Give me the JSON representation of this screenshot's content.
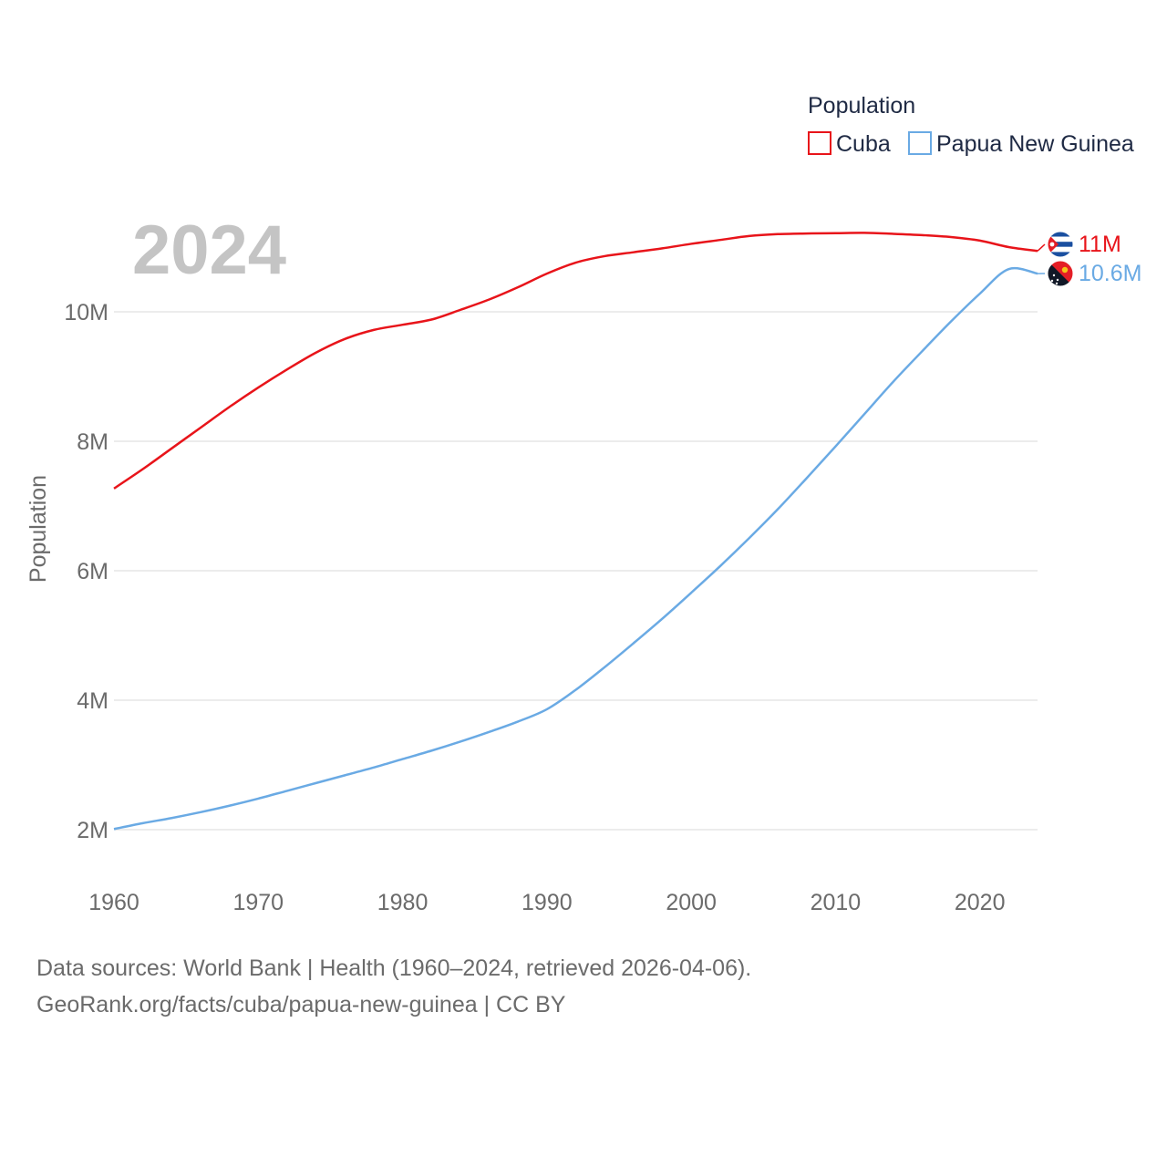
{
  "chart_data": {
    "type": "line",
    "year_label": "2024",
    "ylabel": "Population",
    "legend": {
      "title": "Population",
      "placement": "top-right"
    },
    "x_ticks": [
      1960,
      1970,
      1980,
      1990,
      2000,
      2010,
      2020
    ],
    "xlim": [
      1960,
      2024
    ],
    "y_ticks": [
      {
        "value": 2000000,
        "label": "2M"
      },
      {
        "value": 4000000,
        "label": "4M"
      },
      {
        "value": 6000000,
        "label": "6M"
      },
      {
        "value": 8000000,
        "label": "8M"
      },
      {
        "value": 10000000,
        "label": "10M"
      }
    ],
    "series": [
      {
        "name": "Cuba",
        "color": "#e8141a",
        "end_label": "11M",
        "flag": "cuba-flag-icon",
        "points": [
          [
            1960,
            7270000
          ],
          [
            1962,
            7570000
          ],
          [
            1964,
            7890000
          ],
          [
            1966,
            8210000
          ],
          [
            1968,
            8530000
          ],
          [
            1970,
            8830000
          ],
          [
            1972,
            9110000
          ],
          [
            1974,
            9370000
          ],
          [
            1976,
            9580000
          ],
          [
            1978,
            9720000
          ],
          [
            1980,
            9800000
          ],
          [
            1982,
            9880000
          ],
          [
            1984,
            10030000
          ],
          [
            1986,
            10190000
          ],
          [
            1988,
            10380000
          ],
          [
            1990,
            10590000
          ],
          [
            1992,
            10760000
          ],
          [
            1994,
            10860000
          ],
          [
            1996,
            10920000
          ],
          [
            1998,
            10980000
          ],
          [
            2000,
            11050000
          ],
          [
            2002,
            11110000
          ],
          [
            2004,
            11170000
          ],
          [
            2006,
            11200000
          ],
          [
            2008,
            11210000
          ],
          [
            2010,
            11215000
          ],
          [
            2012,
            11220000
          ],
          [
            2014,
            11205000
          ],
          [
            2016,
            11185000
          ],
          [
            2018,
            11155000
          ],
          [
            2020,
            11100000
          ],
          [
            2022,
            11000000
          ],
          [
            2024,
            10940000
          ]
        ]
      },
      {
        "name": "Papua New Guinea",
        "color": "#6aaae4",
        "end_label": "10.6M",
        "flag": "png-flag-icon",
        "points": [
          [
            1960,
            2010000
          ],
          [
            1962,
            2100000
          ],
          [
            1964,
            2180000
          ],
          [
            1966,
            2270000
          ],
          [
            1968,
            2370000
          ],
          [
            1970,
            2480000
          ],
          [
            1972,
            2600000
          ],
          [
            1974,
            2720000
          ],
          [
            1976,
            2840000
          ],
          [
            1978,
            2960000
          ],
          [
            1980,
            3090000
          ],
          [
            1982,
            3220000
          ],
          [
            1984,
            3360000
          ],
          [
            1986,
            3510000
          ],
          [
            1988,
            3670000
          ],
          [
            1990,
            3860000
          ],
          [
            1992,
            4160000
          ],
          [
            1994,
            4510000
          ],
          [
            1996,
            4880000
          ],
          [
            1998,
            5260000
          ],
          [
            2000,
            5660000
          ],
          [
            2002,
            6070000
          ],
          [
            2004,
            6500000
          ],
          [
            2006,
            6950000
          ],
          [
            2008,
            7430000
          ],
          [
            2010,
            7920000
          ],
          [
            2012,
            8420000
          ],
          [
            2014,
            8920000
          ],
          [
            2016,
            9390000
          ],
          [
            2018,
            9850000
          ],
          [
            2020,
            10280000
          ],
          [
            2022,
            10660000
          ],
          [
            2024,
            10590000
          ]
        ]
      }
    ]
  },
  "footer": {
    "line1": "Data sources: World Bank | Health (1960–2024, retrieved 2026-04-06).",
    "line2": "GeoRank.org/facts/cuba/papua-new-guinea | CC BY"
  }
}
